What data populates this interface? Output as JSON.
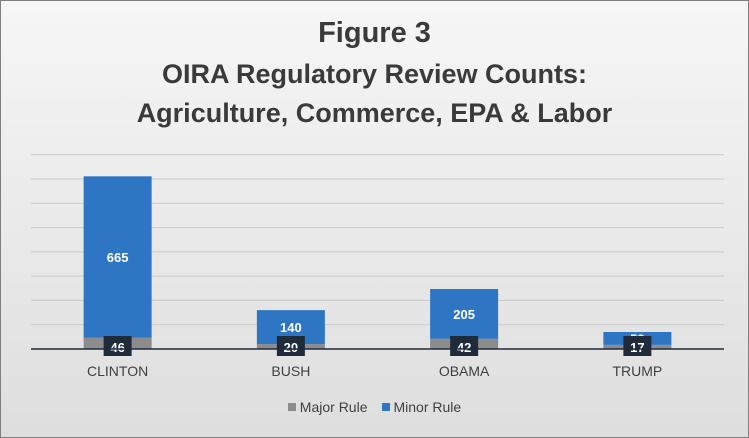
{
  "chart_data": {
    "type": "bar",
    "stacked": true,
    "title": [
      "Figure 3",
      "OIRA Regulatory Review Counts:",
      "Agriculture, Commerce, EPA & Labor"
    ],
    "categories": [
      "CLINTON",
      "BUSH",
      "OBAMA",
      "TRUMP"
    ],
    "series": [
      {
        "name": "Major Rule",
        "values": [
          46,
          20,
          42,
          17
        ],
        "color": "#8c8c8c"
      },
      {
        "name": "Minor Rule",
        "values": [
          665,
          140,
          205,
          53
        ],
        "color": "#2e75c4"
      }
    ],
    "ylim": [
      0,
      800
    ],
    "grid": true,
    "legend_position": "bottom"
  }
}
